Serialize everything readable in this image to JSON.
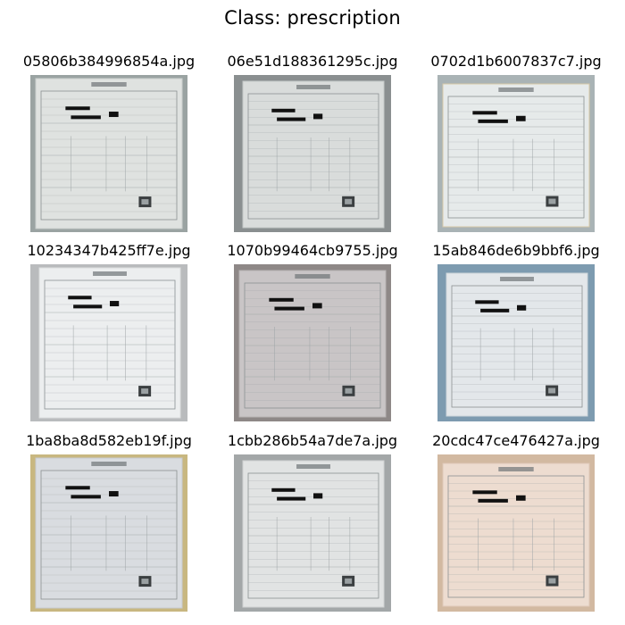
{
  "figure": {
    "title": "Class: prescription"
  },
  "images": [
    {
      "filename": "05806b384996854a.jpg",
      "bg": "#9aa3a2",
      "paper": "#dfe2e0",
      "tint": "#c9cfcd"
    },
    {
      "filename": "06e51d188361295c.jpg",
      "bg": "#8a8f90",
      "paper": "#d9dcdb",
      "tint": "#c4c8c7"
    },
    {
      "filename": "0702d1b6007837c7.jpg",
      "bg": "#a9b3b5",
      "paper": "#e6eaea",
      "tint": "#d8c9a8"
    },
    {
      "filename": "10234347b425ff7e.jpg",
      "bg": "#b9bbbd",
      "paper": "#eceeef",
      "tint": "#dadcdd"
    },
    {
      "filename": "1070b99464cb9755.jpg",
      "bg": "#8e8887",
      "paper": "#c9c5c6",
      "tint": "#b7b2b3"
    },
    {
      "filename": "15ab846de6b9bbf6.jpg",
      "bg": "#7d9bb0",
      "paper": "#e3e7ea",
      "tint": "#cdd5da"
    },
    {
      "filename": "1ba8ba8d582eb19f.jpg",
      "bg": "#c8b780",
      "paper": "#d9dce0",
      "tint": "#c6cad0"
    },
    {
      "filename": "1cbb286b54a7de7a.jpg",
      "bg": "#a3a7a8",
      "paper": "#e1e3e3",
      "tint": "#cfd2d2"
    },
    {
      "filename": "20cdc47ce476427a.jpg",
      "bg": "#d2b9a1",
      "paper": "#eddcd0",
      "tint": "#dfc7b7"
    }
  ]
}
